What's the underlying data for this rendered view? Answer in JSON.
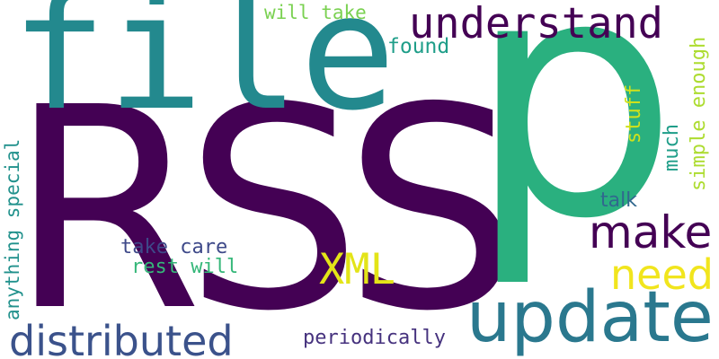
{
  "words": [
    {
      "id": "rss",
      "text": "RSS",
      "color": "#440154",
      "weight": 1.0
    },
    {
      "id": "p",
      "text": "p",
      "color": "#2ab07f",
      "weight": 0.9
    },
    {
      "id": "file",
      "text": "file",
      "color": "#23898e",
      "weight": 0.6
    },
    {
      "id": "update",
      "text": "update",
      "color": "#2a788e",
      "weight": 0.3
    },
    {
      "id": "understand",
      "text": "understand",
      "color": "#440154",
      "weight": 0.2
    },
    {
      "id": "distributed",
      "text": "distributed",
      "color": "#3b528b",
      "weight": 0.18
    },
    {
      "id": "make",
      "text": "make",
      "color": "#440154",
      "weight": 0.17
    },
    {
      "id": "xml",
      "text": "XML",
      "color": "#e3e418",
      "weight": 0.17
    },
    {
      "id": "need",
      "text": "need",
      "color": "#f1e51d",
      "weight": 0.17
    },
    {
      "id": "will-take",
      "text": "will take",
      "color": "#7ad151",
      "weight": 0.08
    },
    {
      "id": "found",
      "text": "found",
      "color": "#1f9e89",
      "weight": 0.08
    },
    {
      "id": "simple-enough",
      "text": "simple enough",
      "color": "#addc30",
      "weight": 0.08
    },
    {
      "id": "stuff",
      "text": "stuff",
      "color": "#d0e11c",
      "weight": 0.08
    },
    {
      "id": "much",
      "text": "much",
      "color": "#1f9e89",
      "weight": 0.08
    },
    {
      "id": "talk",
      "text": "talk",
      "color": "#31688e",
      "weight": 0.08
    },
    {
      "id": "anything-special",
      "text": "anything special",
      "color": "#21918c",
      "weight": 0.08
    },
    {
      "id": "take-care",
      "text": "take care",
      "color": "#3e4989",
      "weight": 0.08
    },
    {
      "id": "rest-will",
      "text": "rest will",
      "color": "#35b779",
      "weight": 0.08
    },
    {
      "id": "periodically",
      "text": "periodically",
      "color": "#46327e",
      "weight": 0.08
    }
  ]
}
